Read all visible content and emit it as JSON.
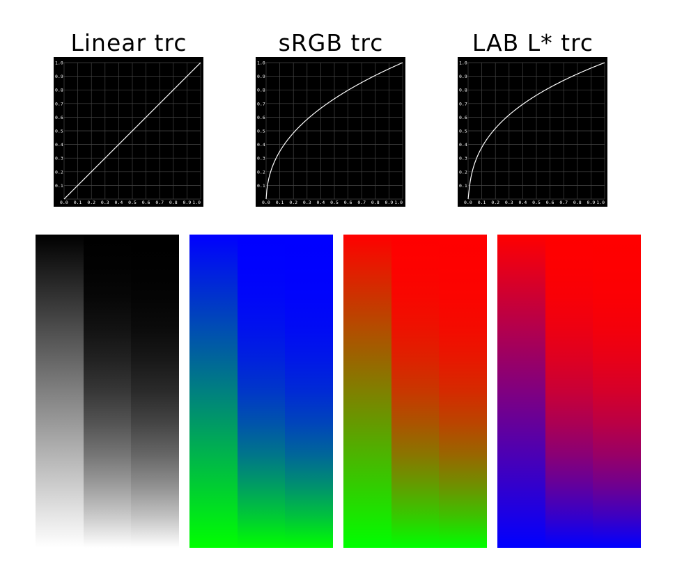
{
  "titles": [
    "Linear trc",
    "sRGB trc",
    "LAB L* trc"
  ],
  "chart_data": [
    {
      "type": "line",
      "title": "Linear trc",
      "curve": "linear",
      "x": [
        0.0,
        0.1,
        0.2,
        0.3,
        0.4,
        0.5,
        0.6,
        0.7,
        0.8,
        0.9,
        1.0
      ],
      "y": [
        0.0,
        0.1,
        0.2,
        0.3,
        0.4,
        0.5,
        0.6,
        0.7,
        0.8,
        0.9,
        1.0
      ],
      "xlim": [
        0,
        1
      ],
      "ylim": [
        0,
        1
      ],
      "xticks": [
        "0.0",
        "0.1",
        "0.2",
        "0.3",
        "0.4",
        "0.5",
        "0.6",
        "0.7",
        "0.8",
        "0.9",
        "1.0"
      ],
      "yticks": [
        "0.1",
        "0.2",
        "0.3",
        "0.4",
        "0.5",
        "0.6",
        "0.7",
        "0.8",
        "0.9",
        "1.0"
      ],
      "grid": true
    },
    {
      "type": "line",
      "title": "sRGB trc",
      "curve": "srgb",
      "x": [
        0.0,
        0.1,
        0.2,
        0.3,
        0.4,
        0.5,
        0.6,
        0.7,
        0.8,
        0.9,
        1.0
      ],
      "y": [
        0.0,
        0.35,
        0.48,
        0.58,
        0.66,
        0.74,
        0.8,
        0.85,
        0.91,
        0.95,
        1.0
      ],
      "xlim": [
        0,
        1
      ],
      "ylim": [
        0,
        1
      ],
      "xticks": [
        "0.0",
        "0.1",
        "0.2",
        "0.3",
        "0.4",
        "0.5",
        "0.6",
        "0.7",
        "0.8",
        "0.9",
        "1.0"
      ],
      "yticks": [
        "0.1",
        "0.2",
        "0.3",
        "0.4",
        "0.5",
        "0.6",
        "0.7",
        "0.8",
        "0.9",
        "1.0"
      ],
      "grid": true
    },
    {
      "type": "line",
      "title": "LAB L* trc",
      "curve": "lab",
      "x": [
        0.0,
        0.1,
        0.2,
        0.3,
        0.4,
        0.5,
        0.6,
        0.7,
        0.8,
        0.9,
        1.0
      ],
      "y": [
        0.0,
        0.38,
        0.52,
        0.62,
        0.69,
        0.76,
        0.82,
        0.87,
        0.92,
        0.96,
        1.0
      ],
      "xlim": [
        0,
        1
      ],
      "ylim": [
        0,
        1
      ],
      "xticks": [
        "0.0",
        "0.1",
        "0.2",
        "0.3",
        "0.4",
        "0.5",
        "0.6",
        "0.7",
        "0.8",
        "0.9",
        "1.0"
      ],
      "yticks": [
        "0.1",
        "0.2",
        "0.3",
        "0.4",
        "0.5",
        "0.6",
        "0.7",
        "0.8",
        "0.9",
        "1.0"
      ],
      "grid": true
    }
  ],
  "gradient_panels": [
    {
      "name": "gray",
      "top": "#000000",
      "bottom": "#ffffff",
      "side": "#ffffff"
    },
    {
      "name": "blue-green",
      "top": "#0000ff",
      "bottom": "#00ff00",
      "side": "#ffffff"
    },
    {
      "name": "red-green",
      "top": "#ff0000",
      "bottom": "#00ff00",
      "side": "#ffffff"
    },
    {
      "name": "red-blue",
      "top": "#ff0000",
      "bottom": "#0000ff",
      "side": "#ffffff"
    }
  ],
  "colors": {
    "plot_bg": "#000000",
    "grid": "#444444",
    "curve": "#ffffff",
    "tick": "#ffffff"
  }
}
